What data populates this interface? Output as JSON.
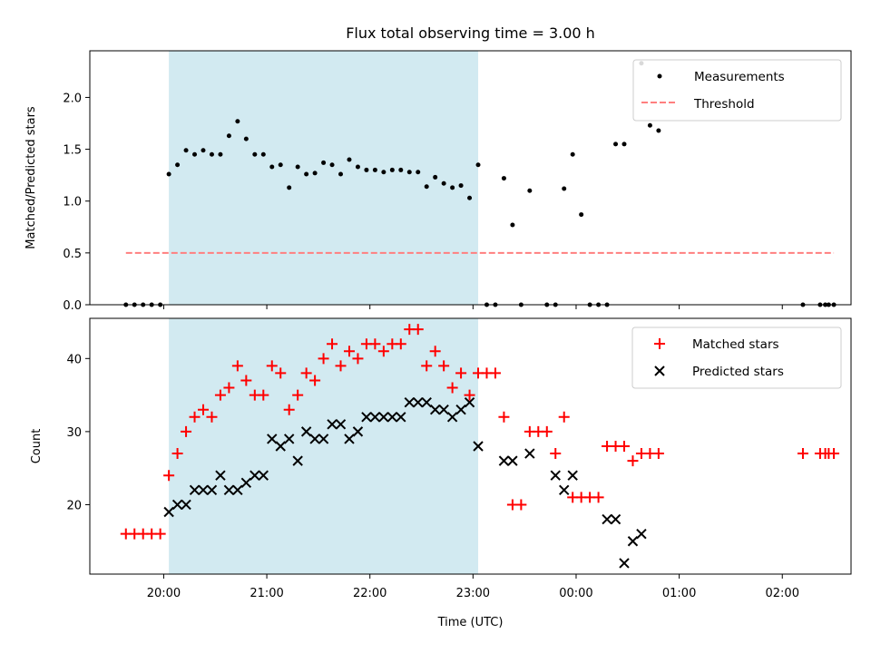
{
  "chart_data": {
    "title": "Flux total observing time = 3.00 h",
    "xlabel": "Time (UTC)",
    "xlim": [
      "19:17",
      "02:40"
    ],
    "x_ticks": [
      "20:00",
      "21:00",
      "22:00",
      "23:00",
      "00:00",
      "01:00",
      "02:00"
    ],
    "shaded_interval": [
      "20:03",
      "23:03"
    ],
    "colors": {
      "shade": "#add8e6",
      "measurements": "#000000",
      "threshold": "#ff7f7f",
      "matched": "#ff0000",
      "predicted": "#000000"
    },
    "panels": [
      {
        "type": "scatter",
        "ylabel": "Matched/Predicted stars",
        "ylim": [
          0,
          2.45
        ],
        "y_ticks": [
          "0.0",
          "0.5",
          "1.0",
          "1.5",
          "2.0"
        ],
        "legend_position": "top-right",
        "series": [
          {
            "name": "Measurements",
            "marker": "dot",
            "x": [
              "19:38",
              "19:43",
              "19:48",
              "19:53",
              "19:58",
              "20:03",
              "20:08",
              "20:13",
              "20:18",
              "20:23",
              "20:28",
              "20:33",
              "20:38",
              "20:43",
              "20:48",
              "20:53",
              "20:58",
              "21:03",
              "21:08",
              "21:13",
              "21:18",
              "21:23",
              "21:28",
              "21:33",
              "21:38",
              "21:43",
              "21:48",
              "21:53",
              "21:58",
              "22:03",
              "22:08",
              "22:13",
              "22:18",
              "22:23",
              "22:28",
              "22:33",
              "22:38",
              "22:43",
              "22:48",
              "22:53",
              "22:58",
              "23:03",
              "23:08",
              "23:13",
              "23:18",
              "23:23",
              "23:28",
              "23:33",
              "23:43",
              "23:48",
              "23:53",
              "23:58",
              "00:03",
              "00:08",
              "00:13",
              "00:18",
              "00:23",
              "00:28",
              "00:38",
              "00:43",
              "00:48",
              "02:12",
              "02:22",
              "02:25",
              "02:27",
              "02:30"
            ],
            "y": [
              0,
              0,
              0,
              0,
              0,
              1.26,
              1.35,
              1.49,
              1.45,
              1.49,
              1.45,
              1.45,
              1.63,
              1.77,
              1.6,
              1.45,
              1.45,
              1.33,
              1.35,
              1.13,
              1.33,
              1.26,
              1.27,
              1.37,
              1.35,
              1.26,
              1.4,
              1.33,
              1.3,
              1.3,
              1.28,
              1.3,
              1.3,
              1.28,
              1.28,
              1.14,
              1.23,
              1.17,
              1.13,
              1.15,
              1.03,
              1.35,
              0,
              0,
              1.22,
              0.77,
              0,
              1.1,
              0,
              0,
              1.12,
              1.45,
              0.87,
              0,
              0,
              0,
              1.55,
              1.55,
              2.33,
              1.73,
              1.68,
              0,
              0,
              0,
              0,
              0
            ]
          },
          {
            "name": "Threshold",
            "type": "line",
            "style": "dashed",
            "x": [
              "19:38",
              "02:30"
            ],
            "y": [
              0.5,
              0.5
            ]
          }
        ]
      },
      {
        "type": "scatter",
        "ylabel": "Count",
        "ylim": [
          10.5,
          45.5
        ],
        "y_ticks": [
          "20",
          "30",
          "40"
        ],
        "legend_position": "top-right",
        "series": [
          {
            "name": "Matched stars",
            "marker": "plus",
            "x": [
              "19:38",
              "19:43",
              "19:48",
              "19:53",
              "19:58",
              "20:03",
              "20:08",
              "20:13",
              "20:18",
              "20:23",
              "20:28",
              "20:33",
              "20:38",
              "20:43",
              "20:48",
              "20:53",
              "20:58",
              "21:03",
              "21:08",
              "21:13",
              "21:18",
              "21:23",
              "21:28",
              "21:33",
              "21:38",
              "21:43",
              "21:48",
              "21:53",
              "21:58",
              "22:03",
              "22:08",
              "22:13",
              "22:18",
              "22:23",
              "22:28",
              "22:33",
              "22:38",
              "22:43",
              "22:48",
              "22:53",
              "22:58",
              "23:03",
              "23:08",
              "23:13",
              "23:18",
              "23:23",
              "23:28",
              "23:33",
              "23:38",
              "23:43",
              "23:48",
              "23:53",
              "23:58",
              "00:03",
              "00:08",
              "00:13",
              "00:18",
              "00:23",
              "00:28",
              "00:33",
              "00:38",
              "00:43",
              "00:48",
              "02:12",
              "02:22",
              "02:25",
              "02:27",
              "02:30"
            ],
            "y": [
              16,
              16,
              16,
              16,
              16,
              24,
              27,
              30,
              32,
              33,
              32,
              35,
              36,
              39,
              37,
              35,
              35,
              39,
              38,
              33,
              35,
              38,
              37,
              40,
              42,
              39,
              41,
              40,
              42,
              42,
              41,
              42,
              42,
              44,
              44,
              39,
              41,
              39,
              36,
              38,
              35,
              38,
              38,
              38,
              32,
              20,
              20,
              30,
              30,
              30,
              27,
              32,
              21,
              21,
              21,
              21,
              28,
              28,
              28,
              26,
              27,
              27,
              27,
              27,
              27,
              27,
              27,
              27
            ]
          },
          {
            "name": "Predicted stars",
            "marker": "x",
            "x": [
              "20:03",
              "20:08",
              "20:13",
              "20:18",
              "20:23",
              "20:28",
              "20:33",
              "20:38",
              "20:43",
              "20:48",
              "20:53",
              "20:58",
              "21:03",
              "21:08",
              "21:13",
              "21:18",
              "21:23",
              "21:28",
              "21:33",
              "21:38",
              "21:43",
              "21:48",
              "21:53",
              "21:58",
              "22:03",
              "22:08",
              "22:13",
              "22:18",
              "22:23",
              "22:28",
              "22:33",
              "22:38",
              "22:43",
              "22:48",
              "22:53",
              "22:58",
              "23:03",
              "23:18",
              "23:23",
              "23:33",
              "23:48",
              "23:53",
              "23:58",
              "00:18",
              "00:23",
              "00:28",
              "00:33",
              "00:38"
            ],
            "y": [
              19,
              20,
              20,
              22,
              22,
              22,
              24,
              22,
              22,
              23,
              24,
              24,
              29,
              28,
              29,
              26,
              30,
              29,
              29,
              31,
              31,
              29,
              30,
              32,
              32,
              32,
              32,
              32,
              34,
              34,
              34,
              33,
              33,
              32,
              33,
              34,
              28,
              26,
              26,
              27,
              24,
              22,
              24,
              18,
              18,
              12,
              15,
              16
            ]
          }
        ]
      }
    ]
  }
}
